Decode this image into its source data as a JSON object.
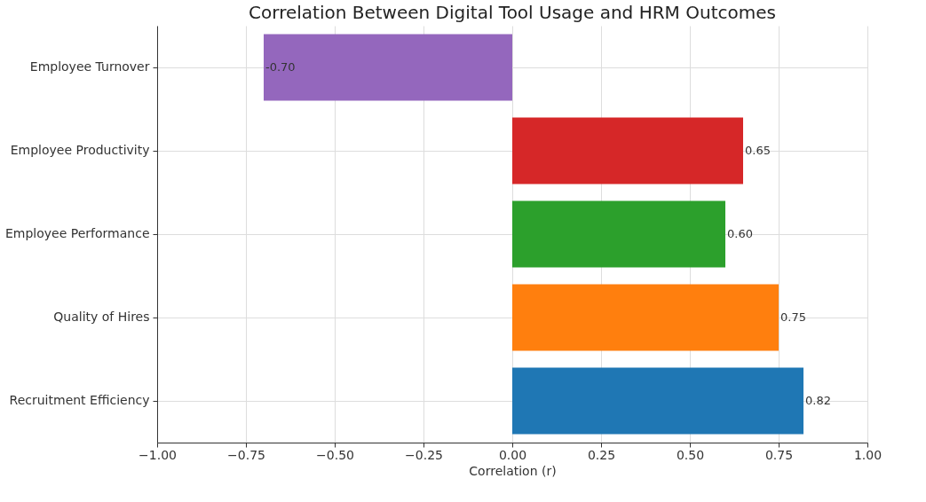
{
  "chart_data": {
    "type": "bar",
    "orientation": "horizontal",
    "title": "Correlation Between Digital Tool Usage and HRM Outcomes",
    "xlabel": "Correlation (r)",
    "categories": [
      "Employee Turnover",
      "Employee Productivity",
      "Employee Performance",
      "Quality of Hires",
      "Recruitment Efficiency"
    ],
    "values": [
      -0.7,
      0.65,
      0.6,
      0.75,
      0.82
    ],
    "colors": [
      "#9467bd",
      "#d62728",
      "#2ca02c",
      "#ff7f0e",
      "#1f77b4"
    ],
    "value_labels": [
      "-0.70",
      "0.65",
      "0.60",
      "0.75",
      "0.82"
    ],
    "xlim": [
      -1,
      1
    ],
    "xticks": [
      {
        "value": -1,
        "label": "−1.00"
      },
      {
        "value": -0.75,
        "label": "−0.75"
      },
      {
        "value": -0.5,
        "label": "−0.50"
      },
      {
        "value": -0.25,
        "label": "−0.25"
      },
      {
        "value": 0,
        "label": "0.00"
      },
      {
        "value": 0.25,
        "label": "0.25"
      },
      {
        "value": 0.5,
        "label": "0.50"
      },
      {
        "value": 0.75,
        "label": "0.75"
      },
      {
        "value": 1,
        "label": "1.00"
      }
    ],
    "grid": true
  }
}
